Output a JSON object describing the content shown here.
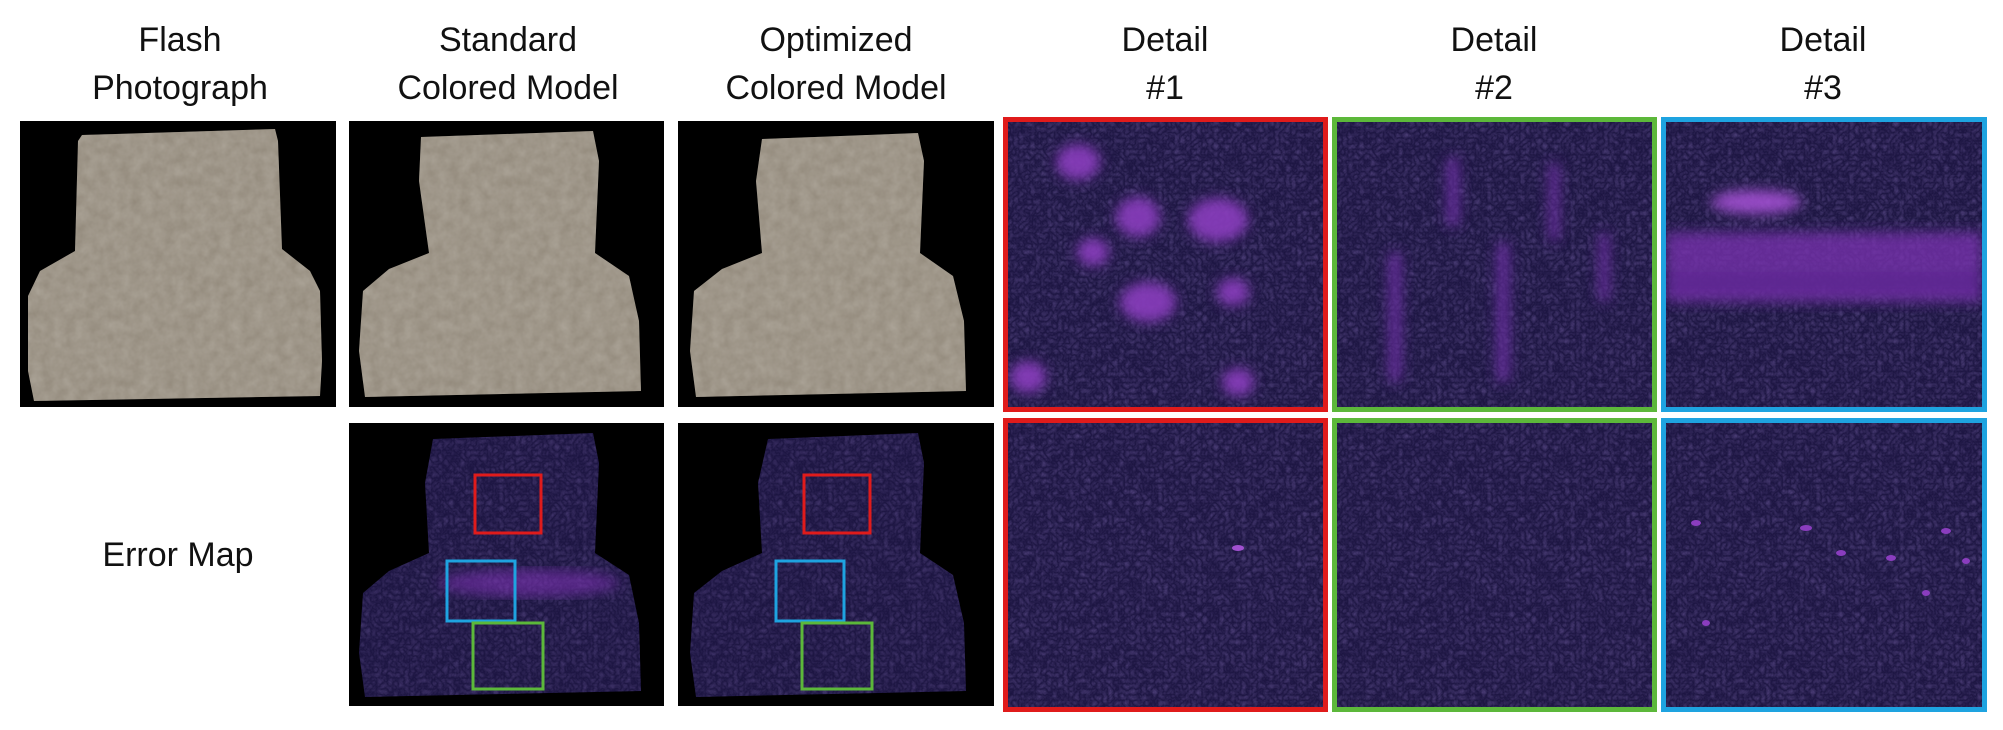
{
  "headers": {
    "col1": {
      "line1": "Flash",
      "line2": "Photograph"
    },
    "col2": {
      "line1": "Standard",
      "line2": "Colored Model"
    },
    "col3": {
      "line1": "Optimized",
      "line2": "Colored Model"
    },
    "col4": {
      "line1": "Detail",
      "line2": "#1"
    },
    "col5": {
      "line1": "Detail",
      "line2": "#2"
    },
    "col6": {
      "line1": "Detail",
      "line2": "#3"
    }
  },
  "row_labels": {
    "error_map": "Error Map"
  },
  "colors": {
    "detail1_frame": "#e01b1b",
    "detail2_frame": "#5cb83a",
    "detail3_frame": "#1ea3e0",
    "model_fill": "#938a7c",
    "error_background": "#1b1440",
    "error_highlight": "#8a3dbe",
    "image_background": "#000000"
  }
}
